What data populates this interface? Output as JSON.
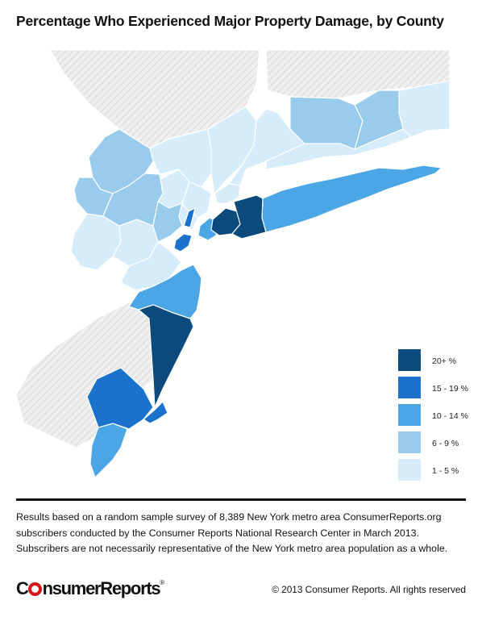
{
  "title": "Percentage Who Experienced Major Property Damage, by County",
  "legend": [
    {
      "label": "20+ %",
      "color": "#0a4a7c"
    },
    {
      "label": "15 - 19 %",
      "color": "#1a72cc"
    },
    {
      "label": "10 - 14 %",
      "color": "#4aa6e4"
    },
    {
      "label": "6 - 9 %",
      "color": "#98cbec"
    },
    {
      "label": "1 - 5 %",
      "color": "#d6ecfa"
    }
  ],
  "footnote": [
    "Results based on a random sample survey of 8,389 New York metro area ConsumerReports.org",
    "subscribers conducted by the Consumer Reports National Research Center in March 2013.",
    "Subscribers are not necessarily representative of the New York metro area population as a whole."
  ],
  "logo": {
    "part1": "C",
    "part2": "nsumerReports",
    "mark": "®"
  },
  "copyright": "© 2013 Consumer Reports. All rights reserved"
}
